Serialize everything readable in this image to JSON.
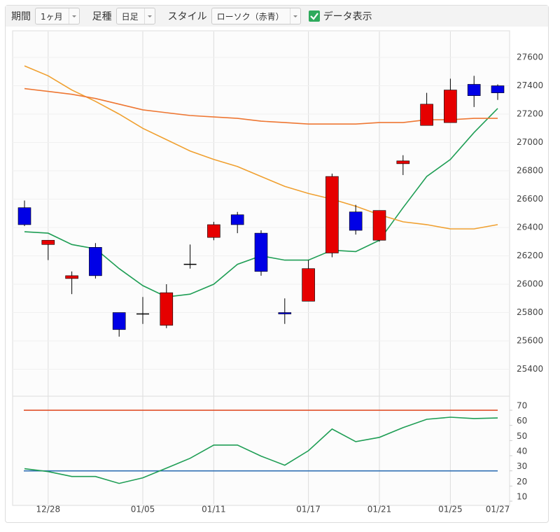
{
  "toolbar": {
    "period_label": "期間",
    "period_value": "1ヶ月",
    "bar_label": "足種",
    "bar_value": "日足",
    "style_label": "スタイル",
    "style_value": "ローソク（赤青）",
    "data_toggle": "データ表示",
    "data_toggle_checked": true
  },
  "chart_data": [
    {
      "type": "candlestick",
      "categories": [
        null,
        "12/28",
        null,
        null,
        null,
        "01/05",
        null,
        null,
        "01/11",
        null,
        null,
        null,
        "01/17",
        null,
        null,
        "01/21",
        null,
        null,
        "01/25",
        null,
        "01/27"
      ],
      "open": [
        26540,
        26280,
        26040,
        26260,
        25800,
        25790,
        25710,
        26140,
        26330,
        26490,
        26360,
        25800,
        25880,
        26220,
        26510,
        26310,
        26850,
        27120,
        27140,
        27410,
        27400
      ],
      "high": [
        26590,
        26310,
        26090,
        26290,
        25800,
        25910,
        26000,
        26280,
        26440,
        26510,
        26380,
        25900,
        26170,
        26780,
        26560,
        26520,
        26910,
        27350,
        27450,
        27470,
        27410
      ],
      "low": [
        26410,
        26170,
        25930,
        26040,
        25630,
        25720,
        25690,
        26110,
        26310,
        26360,
        26060,
        25720,
        25880,
        26190,
        26350,
        26300,
        26770,
        27120,
        27140,
        27250,
        27300
      ],
      "close": [
        26420,
        26310,
        26060,
        26060,
        25680,
        25790,
        25940,
        26140,
        26420,
        26420,
        26090,
        25790,
        26110,
        26760,
        26380,
        26520,
        26870,
        27270,
        27370,
        27330,
        27350
      ],
      "up_color": "#e60000",
      "down_color": "#0000e6",
      "flat_color": "#000000",
      "series": [
        {
          "color": "#1f9e55",
          "values": [
            26370,
            26360,
            26280,
            26250,
            26110,
            25990,
            25910,
            25930,
            26000,
            26140,
            26200,
            26170,
            26170,
            26240,
            26230,
            26310,
            26540,
            26760,
            26880,
            27070,
            27240
          ]
        },
        {
          "color": "#f0a030",
          "values": [
            27540,
            27470,
            27370,
            27290,
            27200,
            27100,
            27020,
            26940,
            26880,
            26830,
            26760,
            26690,
            26640,
            26600,
            26550,
            26490,
            26440,
            26420,
            26390,
            26390,
            26420
          ]
        },
        {
          "color": "#ee7733",
          "values": [
            27380,
            27360,
            27340,
            27310,
            27270,
            27230,
            27210,
            27190,
            27180,
            27170,
            27150,
            27140,
            27130,
            27130,
            27130,
            27140,
            27140,
            27160,
            27160,
            27170,
            27170
          ]
        }
      ],
      "ylim": [
        25200,
        27800
      ],
      "yticks": [
        25400,
        25600,
        25800,
        26000,
        26200,
        26400,
        26600,
        26800,
        27000,
        27200,
        27400,
        27600
      ],
      "grid": true
    },
    {
      "type": "line",
      "values": [
        31.4,
        29.5,
        26.3,
        26.3,
        21.7,
        25.4,
        31.8,
        38.3,
        47.0,
        47.0,
        39.7,
        33.7,
        43.3,
        57.6,
        49.3,
        52.1,
        58.5,
        64.0,
        65.4,
        64.5,
        64.9
      ],
      "color": "#1f9e55",
      "reference_lines": [
        {
          "value": 70,
          "color": "#e0502a"
        },
        {
          "value": 30,
          "color": "#2f6fb3"
        }
      ],
      "ylim": [
        8,
        78
      ],
      "yticks": [
        10,
        20,
        30,
        40,
        50,
        60,
        70
      ]
    }
  ]
}
